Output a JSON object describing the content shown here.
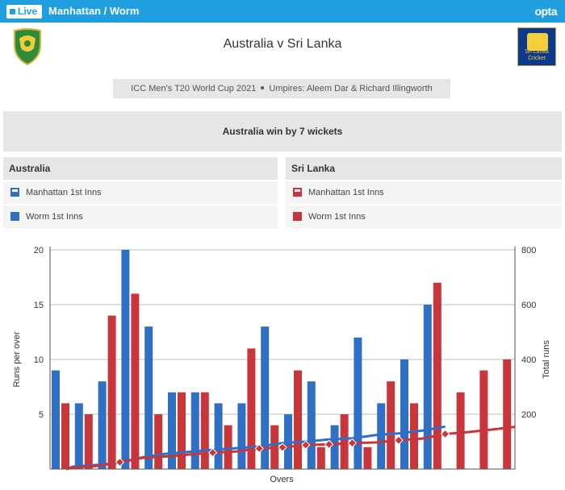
{
  "header": {
    "live_label": "Live",
    "view_title": "Manhattan / Worm",
    "brand": "opta"
  },
  "match": {
    "title": "Australia  v  Sri Lanka",
    "competition": "ICC Men's T20 World Cup 2021",
    "umpires": "Umpires: Aleem Dar & Richard Illingworth",
    "result": "Australia win by 7 wickets",
    "right_logo_text": "Sri Lanka Cricket"
  },
  "legend": {
    "team_a": {
      "name": "Australia",
      "manhattan_label": "Manhattan 1st Inns",
      "worm_label": "Worm 1st Inns",
      "color": "#2f6fc4"
    },
    "team_b": {
      "name": "Sri Lanka",
      "manhattan_label": "Manhattan 1st Inns",
      "worm_label": "Worm 1st Inns",
      "color": "#c8363b"
    }
  },
  "chart_data": {
    "type": "bar",
    "xlabel": "Overs",
    "ylabel": "Runs per over",
    "y2label": "Total runs",
    "ylim": [
      0,
      20
    ],
    "y2lim": [
      0,
      800
    ],
    "yticks": [
      5,
      10,
      15,
      20
    ],
    "y2ticks": [
      200,
      400,
      600,
      800
    ],
    "grid": true,
    "overs": 20,
    "series": [
      {
        "name": "Australia",
        "color": "#2f6fc4",
        "values": [
          9,
          6,
          8,
          20,
          13,
          7,
          7,
          6,
          6,
          13,
          5,
          8,
          4,
          12,
          6,
          10,
          15
        ],
        "worm": [
          9,
          15,
          23,
          43,
          56,
          63,
          70,
          76,
          82,
          95,
          100,
          108,
          112,
          124,
          130,
          140,
          155
        ],
        "wicket_overs": []
      },
      {
        "name": "Sri Lanka",
        "color": "#c8363b",
        "values": [
          6,
          5,
          14,
          16,
          5,
          7,
          7,
          4,
          11,
          4,
          9,
          2,
          5,
          2,
          8,
          6,
          17,
          7,
          9,
          10
        ],
        "worm": [
          6,
          11,
          25,
          41,
          46,
          53,
          60,
          64,
          75,
          79,
          88,
          90,
          95,
          97,
          105,
          111,
          128,
          135,
          144,
          154
        ],
        "wicket_overs": [
          3,
          7,
          9,
          10,
          11,
          12,
          13,
          15,
          17
        ]
      }
    ]
  }
}
